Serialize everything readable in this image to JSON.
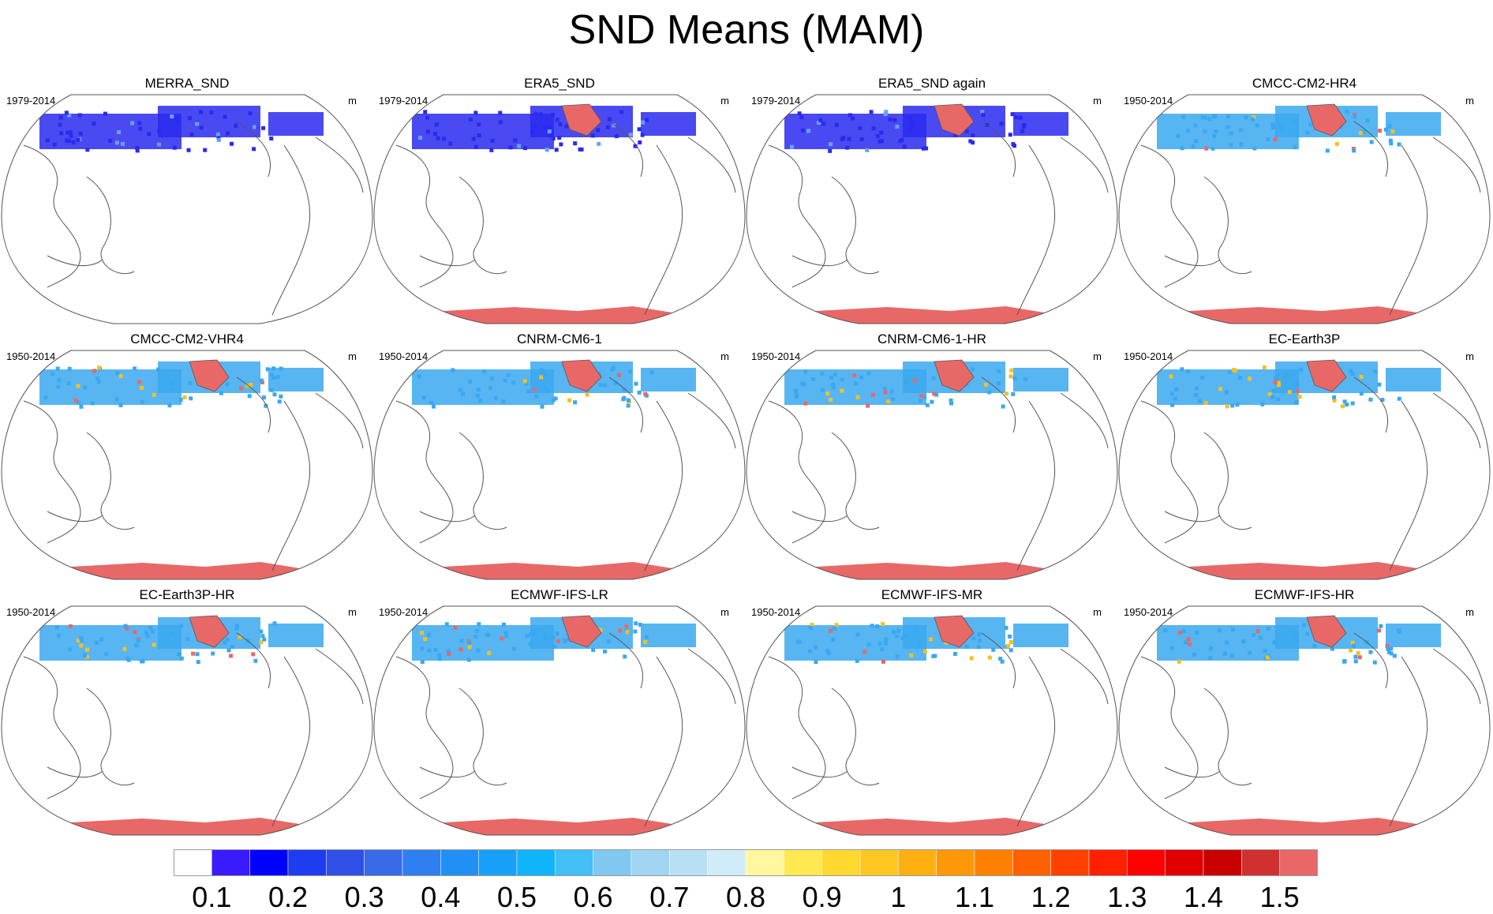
{
  "title": "SND Means (MAM)",
  "colors": {
    "snow_low": "#2a2af0",
    "snow_mid": "#3aa8f0",
    "snow_high": "#f4c020",
    "snow_max": "#e86868",
    "coast": "#555555"
  },
  "panels": [
    {
      "name": "MERRA_SND",
      "period": "1979-2014",
      "unit": "m",
      "antarctica": false
    },
    {
      "name": "ERA5_SND",
      "period": "1979-2014",
      "unit": "m",
      "antarctica": true
    },
    {
      "name": "ERA5_SND again",
      "period": "1979-2014",
      "unit": "m",
      "antarctica": true
    },
    {
      "name": "CMCC-CM2-HR4",
      "period": "1950-2014",
      "unit": "m",
      "antarctica": true
    },
    {
      "name": "CMCC-CM2-VHR4",
      "period": "1950-2014",
      "unit": "m",
      "antarctica": true
    },
    {
      "name": "CNRM-CM6-1",
      "period": "1950-2014",
      "unit": "m",
      "antarctica": true
    },
    {
      "name": "CNRM-CM6-1-HR",
      "period": "1950-2014",
      "unit": "m",
      "antarctica": true
    },
    {
      "name": "EC-Earth3P",
      "period": "1950-2014",
      "unit": "m",
      "antarctica": true
    },
    {
      "name": "EC-Earth3P-HR",
      "period": "1950-2014",
      "unit": "m",
      "antarctica": true
    },
    {
      "name": "ECMWF-IFS-LR",
      "period": "1950-2014",
      "unit": "m",
      "antarctica": true
    },
    {
      "name": "ECMWF-IFS-MR",
      "period": "1950-2014",
      "unit": "m",
      "antarctica": true
    },
    {
      "name": "ECMWF-IFS-HR",
      "period": "1950-2014",
      "unit": "m",
      "antarctica": true
    }
  ],
  "colorbar": {
    "colors": [
      "#ffffff",
      "#3a1aff",
      "#0000ff",
      "#1e3cf0",
      "#3050e8",
      "#3a6ae8",
      "#2f7ff0",
      "#2090f5",
      "#18a0f8",
      "#10b4f8",
      "#40c0f4",
      "#80c8f0",
      "#a0d4f0",
      "#b8e0f4",
      "#d0ecf8",
      "#fff8a0",
      "#ffe850",
      "#ffd830",
      "#ffc820",
      "#ffb010",
      "#ff9808",
      "#ff8000",
      "#ff6000",
      "#ff4000",
      "#ff2000",
      "#ff0000",
      "#e00000",
      "#c80000",
      "#d03030",
      "#e86868"
    ],
    "tick_labels": [
      "0.1",
      "0.2",
      "0.3",
      "0.4",
      "0.5",
      "0.6",
      "0.7",
      "0.8",
      "0.9",
      "1",
      "1.1",
      "1.2",
      "1.3",
      "1.4",
      "1.5"
    ]
  }
}
